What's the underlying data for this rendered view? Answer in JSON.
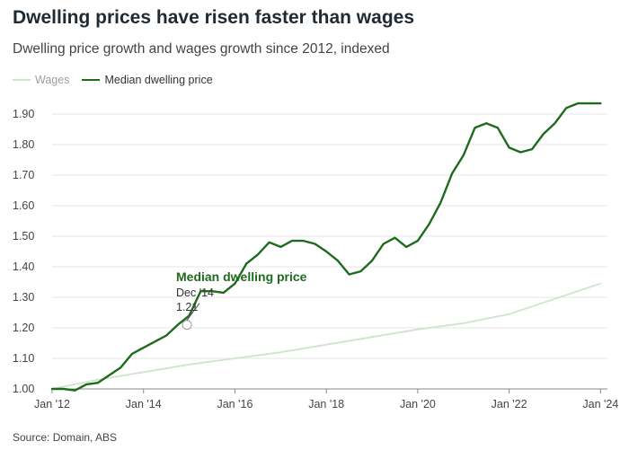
{
  "title": "Dwelling prices have risen faster than wages",
  "subtitle": "Dwelling price growth and wages growth since 2012, indexed",
  "source": "Source: Domain, ABS",
  "colors": {
    "wages": "#cfe3cd",
    "dwelling": "#1e6b1e",
    "grid": "#e4e4e4",
    "axis": "#666666",
    "annotation": "#1e6b1e"
  },
  "legend": {
    "wages": "Wages",
    "dwelling": "Median dwelling price"
  },
  "annotation": {
    "title": "Median dwelling price",
    "date": "Dec '14",
    "value": "1.21",
    "x": 2014.95,
    "y": 1.21
  },
  "chart_data": {
    "type": "line",
    "xlim": [
      2012,
      2024.15
    ],
    "ylim": [
      1.0,
      1.95
    ],
    "ylabel": "",
    "xlabel": "",
    "grid": true,
    "legend_position": "top-left",
    "y_ticks": [
      1.0,
      1.1,
      1.2,
      1.3,
      1.4,
      1.5,
      1.6,
      1.7,
      1.8,
      1.9
    ],
    "y_tick_labels": [
      "1.00",
      "1.10",
      "1.20",
      "1.30",
      "1.40",
      "1.50",
      "1.60",
      "1.70",
      "1.80",
      "1.90"
    ],
    "x_ticks": [
      2012,
      2014,
      2016,
      2018,
      2020,
      2022,
      2024
    ],
    "x_tick_labels": [
      "Jan '12",
      "Jan '14",
      "Jan '16",
      "Jan '18",
      "Jan '20",
      "Jan '22",
      "Jan '24"
    ],
    "series": [
      {
        "name": "Wages",
        "x": [
          2012.0,
          2013.0,
          2014.0,
          2015.0,
          2016.0,
          2017.0,
          2018.0,
          2019.0,
          2020.0,
          2021.0,
          2022.0,
          2023.0,
          2024.0
        ],
        "y": [
          1.0,
          1.03,
          1.055,
          1.08,
          1.1,
          1.12,
          1.145,
          1.17,
          1.195,
          1.215,
          1.245,
          1.295,
          1.345
        ]
      },
      {
        "name": "Median dwelling price",
        "x": [
          2012.0,
          2012.25,
          2012.5,
          2012.75,
          2013.0,
          2013.25,
          2013.5,
          2013.75,
          2014.0,
          2014.25,
          2014.5,
          2014.75,
          2015.0,
          2015.25,
          2015.5,
          2015.75,
          2016.0,
          2016.25,
          2016.5,
          2016.75,
          2017.0,
          2017.25,
          2017.5,
          2017.75,
          2018.0,
          2018.25,
          2018.5,
          2018.75,
          2019.0,
          2019.25,
          2019.5,
          2019.75,
          2020.0,
          2020.25,
          2020.5,
          2020.75,
          2021.0,
          2021.25,
          2021.5,
          2021.75,
          2022.0,
          2022.25,
          2022.5,
          2022.75,
          2023.0,
          2023.25,
          2023.5,
          2023.75,
          2024.0
        ],
        "y": [
          1.0,
          1.0,
          0.995,
          1.015,
          1.02,
          1.045,
          1.07,
          1.115,
          1.135,
          1.155,
          1.175,
          1.21,
          1.24,
          1.32,
          1.32,
          1.315,
          1.345,
          1.41,
          1.44,
          1.48,
          1.465,
          1.485,
          1.485,
          1.475,
          1.45,
          1.42,
          1.375,
          1.385,
          1.42,
          1.475,
          1.495,
          1.465,
          1.485,
          1.54,
          1.61,
          1.705,
          1.765,
          1.855,
          1.87,
          1.855,
          1.79,
          1.775,
          1.785,
          1.835,
          1.87,
          1.92,
          1.935,
          1.935,
          1.935
        ]
      }
    ]
  }
}
